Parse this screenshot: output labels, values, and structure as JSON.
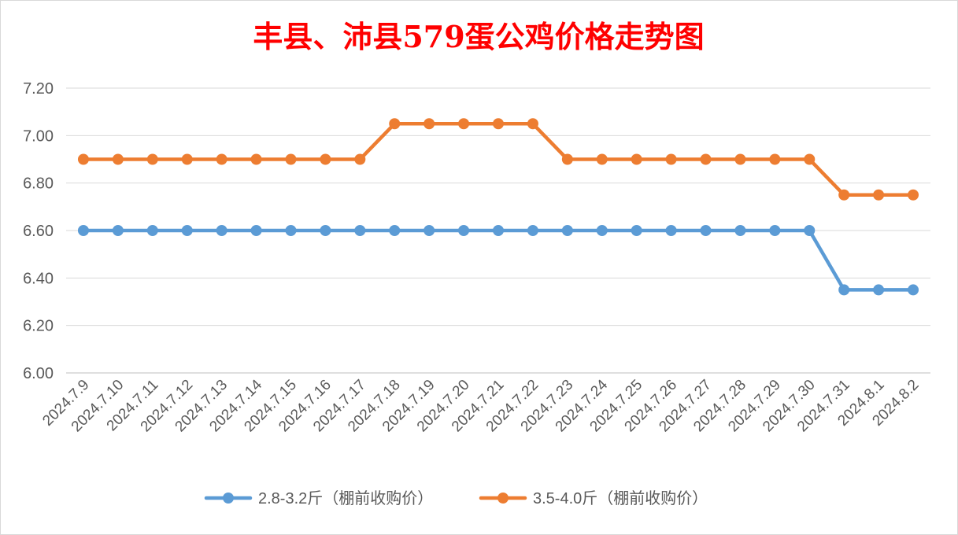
{
  "chart_data": {
    "type": "line",
    "title": "丰县、沛县579蛋公鸡价格走势图",
    "xlabel": "",
    "ylabel": "",
    "ylim": [
      6.0,
      7.2
    ],
    "yticks": [
      "6.00",
      "6.20",
      "6.40",
      "6.60",
      "6.80",
      "7.00",
      "7.20"
    ],
    "grid": true,
    "legend_position": "bottom",
    "categories": [
      "2024.7.9",
      "2024.7.10",
      "2024.7.11",
      "2024.7.12",
      "2024.7.13",
      "2024.7.14",
      "2024.7.15",
      "2024.7.16",
      "2024.7.17",
      "2024.7.18",
      "2024.7.19",
      "2024.7.20",
      "2024.7.21",
      "2024.7.22",
      "2024.7.23",
      "2024.7.24",
      "2024.7.25",
      "2024.7.26",
      "2024.7.27",
      "2024.7.28",
      "2024.7.29",
      "2024.7.30",
      "2024.7.31",
      "2024.8.1",
      "2024.8.2"
    ],
    "series": [
      {
        "name": "2.8-3.2斤（棚前收购价）",
        "color": "#5b9bd5",
        "values": [
          6.6,
          6.6,
          6.6,
          6.6,
          6.6,
          6.6,
          6.6,
          6.6,
          6.6,
          6.6,
          6.6,
          6.6,
          6.6,
          6.6,
          6.6,
          6.6,
          6.6,
          6.6,
          6.6,
          6.6,
          6.6,
          6.6,
          6.35,
          6.35,
          6.35
        ]
      },
      {
        "name": "3.5-4.0斤（棚前收购价）",
        "color": "#ed7d31",
        "values": [
          6.9,
          6.9,
          6.9,
          6.9,
          6.9,
          6.9,
          6.9,
          6.9,
          6.9,
          7.05,
          7.05,
          7.05,
          7.05,
          7.05,
          6.9,
          6.9,
          6.9,
          6.9,
          6.9,
          6.9,
          6.9,
          6.9,
          6.75,
          6.75,
          6.75
        ]
      }
    ]
  }
}
